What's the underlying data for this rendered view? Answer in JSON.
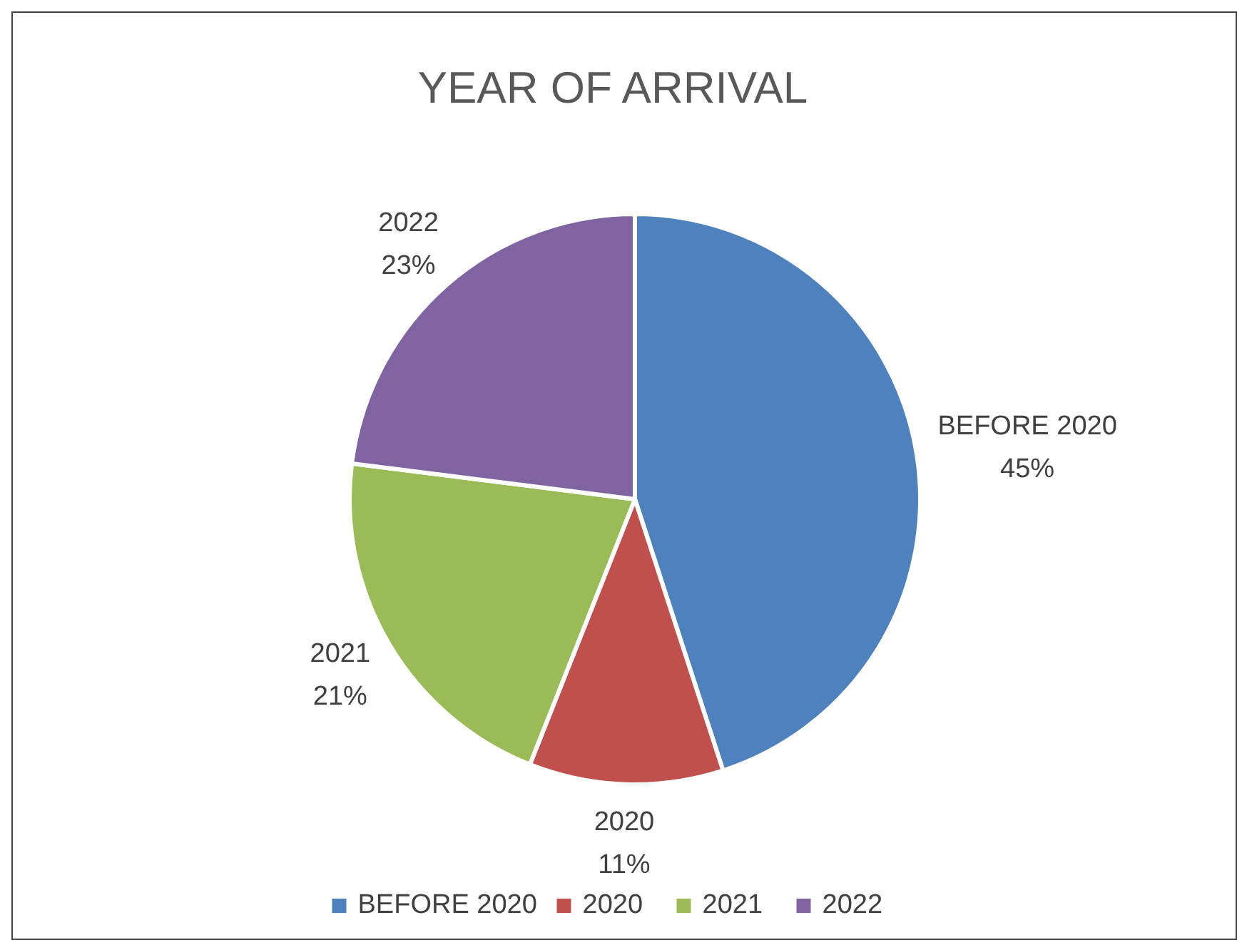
{
  "chart_data": {
    "type": "pie",
    "title": "YEAR OF ARRIVAL",
    "categories": [
      "BEFORE 2020",
      "2020",
      "2021",
      "2022"
    ],
    "values": [
      45,
      11,
      21,
      23
    ],
    "colors": [
      "#4f81bd",
      "#c0504d",
      "#9bbb59",
      "#8064a2"
    ],
    "value_labels": [
      "45%",
      "11%",
      "21%",
      "23%"
    ],
    "legend": "bottom"
  }
}
